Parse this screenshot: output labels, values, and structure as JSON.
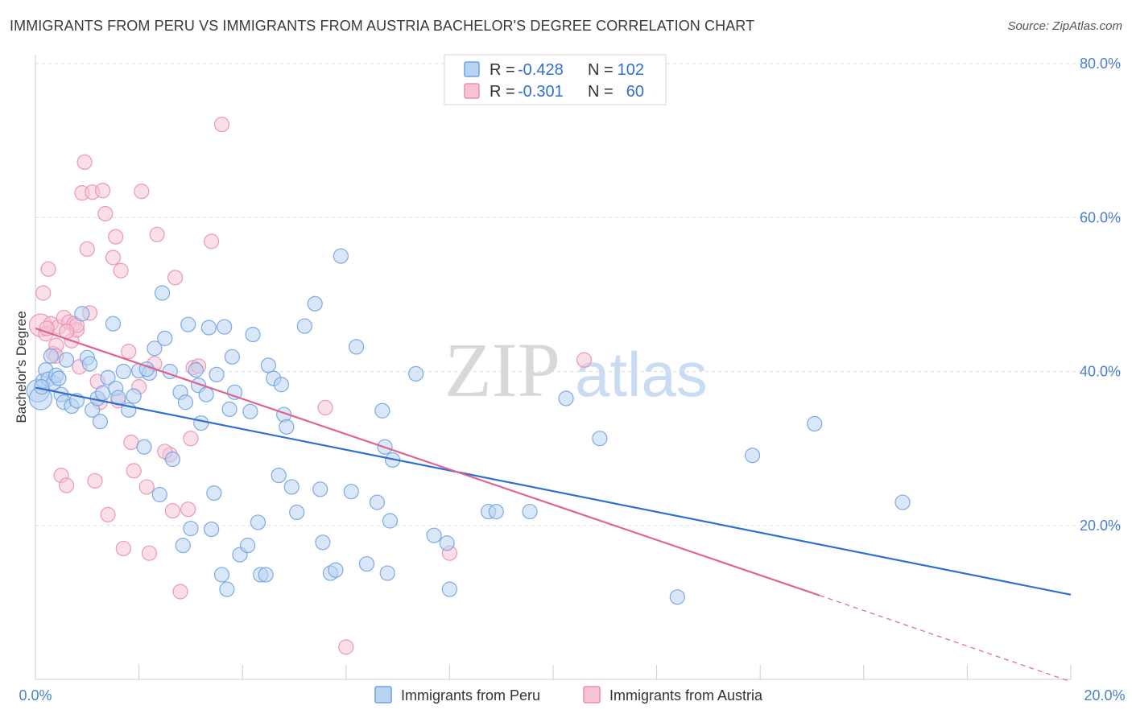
{
  "title": "IMMIGRANTS FROM PERU VS IMMIGRANTS FROM AUSTRIA BACHELOR'S DEGREE CORRELATION CHART",
  "source": "Source: ZipAtlas.com",
  "watermark": {
    "zip": "ZIP",
    "atlas": "atlas"
  },
  "colors": {
    "peru": "#6fa3e0",
    "peru_fill": "#b9d3f2",
    "peru_line": "#2f6fd0",
    "austria": "#e98fb0",
    "austria_fill": "#f6c3d5",
    "austria_line": "#e0628f",
    "tick": "#4a7fd0",
    "grid": "#dddddd"
  },
  "legend": {
    "rows": [
      {
        "r_label": "R = ",
        "r_value": "-0.428",
        "n_label": "N = ",
        "n_value": "102"
      },
      {
        "r_label": "R = ",
        "r_value": "-0.301",
        "n_label": "N = ",
        "n_value": "60"
      }
    ]
  },
  "chart_data": {
    "type": "scatter",
    "title": "IMMIGRANTS FROM PERU VS IMMIGRANTS FROM AUSTRIA BACHELOR'S DEGREE CORRELATION CHART",
    "xlabel": "",
    "ylabel": "Bachelor's Degree",
    "xlim": [
      0,
      20
    ],
    "ylim": [
      0,
      80
    ],
    "x_tick_labels": [
      "0.0%",
      "20.0%"
    ],
    "y_ticks": [
      20,
      40,
      60,
      80
    ],
    "y_tick_labels": [
      "20.0%",
      "40.0%",
      "60.0%",
      "80.0%"
    ],
    "grid": true,
    "legend_position": "top-center",
    "series": [
      {
        "name": "Immigrants from Peru",
        "r": -0.428,
        "n": 102,
        "trend": {
          "x": [
            0,
            20
          ],
          "y": [
            37.9,
            11.0
          ]
        },
        "points": [
          [
            0.05,
            37.5
          ],
          [
            0.1,
            36.5
          ],
          [
            0.15,
            38.8
          ],
          [
            0.2,
            40.2
          ],
          [
            0.25,
            39.0
          ],
          [
            0.3,
            42.0
          ],
          [
            0.35,
            38.5
          ],
          [
            0.4,
            39.5
          ],
          [
            0.5,
            37.0
          ],
          [
            0.55,
            36.0
          ],
          [
            0.6,
            41.5
          ],
          [
            0.7,
            35.5
          ],
          [
            0.8,
            36.2
          ],
          [
            0.9,
            47.5
          ],
          [
            1.0,
            41.8
          ],
          [
            1.1,
            35.0
          ],
          [
            1.2,
            36.5
          ],
          [
            1.25,
            33.5
          ],
          [
            1.3,
            37.2
          ],
          [
            1.4,
            39.2
          ],
          [
            1.5,
            46.2
          ],
          [
            1.55,
            37.8
          ],
          [
            1.6,
            36.6
          ],
          [
            1.7,
            40.0
          ],
          [
            1.8,
            35.0
          ],
          [
            1.9,
            36.8
          ],
          [
            2.0,
            40.1
          ],
          [
            2.1,
            30.2
          ],
          [
            2.2,
            39.8
          ],
          [
            2.3,
            43.0
          ],
          [
            2.4,
            24.0
          ],
          [
            2.45,
            50.2
          ],
          [
            2.5,
            44.3
          ],
          [
            2.6,
            40.0
          ],
          [
            2.65,
            28.6
          ],
          [
            2.8,
            37.3
          ],
          [
            2.85,
            17.4
          ],
          [
            2.9,
            36.0
          ],
          [
            2.95,
            46.1
          ],
          [
            3.0,
            19.6
          ],
          [
            3.1,
            40.2
          ],
          [
            3.15,
            38.2
          ],
          [
            3.2,
            33.3
          ],
          [
            3.3,
            37.0
          ],
          [
            3.35,
            45.7
          ],
          [
            3.4,
            19.5
          ],
          [
            3.45,
            24.2
          ],
          [
            3.5,
            39.6
          ],
          [
            3.6,
            13.6
          ],
          [
            3.65,
            45.8
          ],
          [
            3.7,
            11.7
          ],
          [
            3.8,
            41.9
          ],
          [
            3.85,
            37.3
          ],
          [
            3.95,
            16.2
          ],
          [
            4.1,
            17.4
          ],
          [
            4.15,
            34.8
          ],
          [
            4.2,
            44.8
          ],
          [
            4.3,
            20.4
          ],
          [
            4.35,
            13.6
          ],
          [
            4.45,
            13.6
          ],
          [
            4.5,
            40.8
          ],
          [
            4.6,
            39.1
          ],
          [
            4.7,
            26.5
          ],
          [
            4.75,
            38.3
          ],
          [
            4.8,
            34.4
          ],
          [
            4.85,
            32.8
          ],
          [
            4.95,
            25.0
          ],
          [
            5.05,
            21.7
          ],
          [
            5.2,
            45.9
          ],
          [
            5.4,
            48.8
          ],
          [
            5.5,
            24.7
          ],
          [
            5.55,
            17.8
          ],
          [
            5.7,
            13.8
          ],
          [
            5.8,
            14.2
          ],
          [
            5.9,
            55.0
          ],
          [
            6.1,
            24.4
          ],
          [
            6.2,
            43.2
          ],
          [
            6.4,
            15.0
          ],
          [
            6.6,
            23.0
          ],
          [
            6.7,
            34.9
          ],
          [
            6.75,
            30.2
          ],
          [
            6.8,
            13.8
          ],
          [
            6.85,
            20.6
          ],
          [
            6.9,
            28.5
          ],
          [
            7.35,
            39.7
          ],
          [
            7.7,
            18.7
          ],
          [
            7.95,
            17.7
          ],
          [
            8.0,
            11.7
          ],
          [
            8.75,
            21.8
          ],
          [
            8.9,
            21.8
          ],
          [
            9.55,
            21.8
          ],
          [
            10.25,
            36.5
          ],
          [
            10.9,
            31.3
          ],
          [
            12.4,
            10.7
          ],
          [
            13.85,
            29.1
          ],
          [
            15.05,
            33.2
          ],
          [
            16.75,
            23.0
          ],
          [
            0.12,
            38.0
          ],
          [
            0.45,
            39.1
          ],
          [
            1.05,
            41.0
          ],
          [
            2.15,
            40.3
          ],
          [
            3.75,
            35.1
          ]
        ]
      },
      {
        "name": "Immigrants from Austria",
        "r": -0.301,
        "n": 60,
        "trend": {
          "x": [
            0,
            15.15
          ],
          "y": [
            45.6,
            10.9
          ]
        },
        "trend_dashed": {
          "x": [
            15.15,
            20
          ],
          "y": [
            10.9,
            -0.3
          ]
        },
        "points": [
          [
            0.1,
            46.0
          ],
          [
            0.15,
            50.2
          ],
          [
            0.2,
            44.9
          ],
          [
            0.25,
            53.3
          ],
          [
            0.3,
            46.2
          ],
          [
            0.35,
            42.3
          ],
          [
            0.4,
            43.4
          ],
          [
            0.45,
            45.8
          ],
          [
            0.5,
            26.5
          ],
          [
            0.55,
            47.0
          ],
          [
            0.6,
            25.2
          ],
          [
            0.65,
            46.4
          ],
          [
            0.7,
            44.0
          ],
          [
            0.75,
            46.2
          ],
          [
            0.8,
            45.4
          ],
          [
            0.85,
            40.6
          ],
          [
            0.9,
            63.2
          ],
          [
            0.95,
            67.2
          ],
          [
            1.0,
            55.9
          ],
          [
            1.05,
            47.6
          ],
          [
            1.1,
            63.3
          ],
          [
            1.15,
            25.8
          ],
          [
            1.2,
            38.7
          ],
          [
            1.3,
            63.5
          ],
          [
            1.35,
            60.5
          ],
          [
            1.4,
            21.4
          ],
          [
            1.5,
            54.8
          ],
          [
            1.55,
            57.5
          ],
          [
            1.6,
            36.2
          ],
          [
            1.65,
            53.1
          ],
          [
            1.7,
            17.0
          ],
          [
            1.8,
            42.6
          ],
          [
            1.85,
            30.8
          ],
          [
            1.9,
            27.1
          ],
          [
            2.0,
            38.0
          ],
          [
            2.05,
            63.4
          ],
          [
            2.15,
            25.0
          ],
          [
            2.2,
            16.4
          ],
          [
            2.3,
            41.0
          ],
          [
            2.35,
            57.8
          ],
          [
            2.6,
            29.2
          ],
          [
            2.65,
            21.9
          ],
          [
            2.7,
            52.2
          ],
          [
            2.8,
            11.4
          ],
          [
            2.95,
            22.1
          ],
          [
            3.0,
            31.3
          ],
          [
            3.05,
            40.5
          ],
          [
            3.15,
            40.7
          ],
          [
            3.4,
            56.9
          ],
          [
            3.6,
            72.1
          ],
          [
            5.6,
            35.3
          ],
          [
            6.0,
            4.2
          ],
          [
            8.0,
            16.4
          ],
          [
            10.6,
            41.5
          ],
          [
            0.4,
            42.0
          ],
          [
            0.8,
            46.0
          ],
          [
            1.25,
            36.0
          ],
          [
            2.5,
            29.6
          ],
          [
            0.6,
            45.2
          ],
          [
            0.22,
            45.6
          ]
        ]
      }
    ]
  },
  "bottom_legend": {
    "peru_label": "Immigrants from Peru",
    "austria_label": "Immigrants from Austria"
  }
}
